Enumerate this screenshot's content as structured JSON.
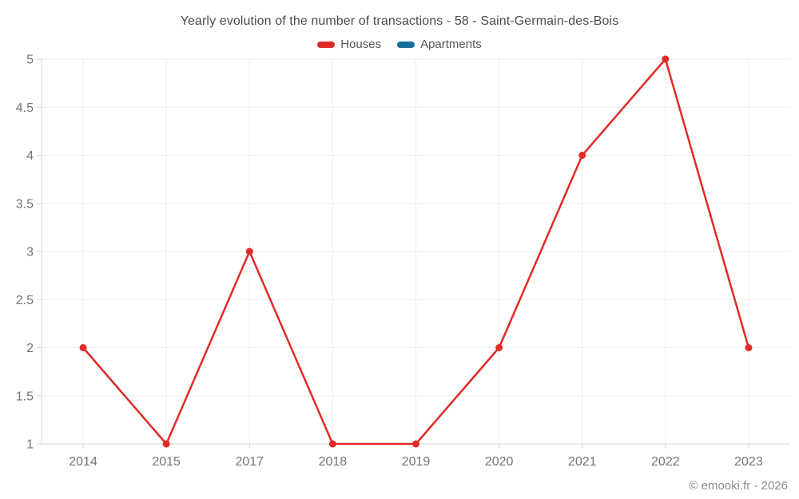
{
  "header": {
    "title": "Yearly evolution of the number of transactions - 58 - Saint-Germain-des-Bois"
  },
  "legend": {
    "items": [
      {
        "label": "Houses",
        "color": "#e02b27"
      },
      {
        "label": "Apartments",
        "color": "#176e9b"
      }
    ]
  },
  "footer": {
    "watermark": "© emooki.fr - 2026"
  },
  "colors": {
    "houses_line": "#e02b27",
    "apartments_line": "#176e9b",
    "gridline": "#ededed",
    "axis": "#d4d4d4",
    "tick_label": "#757575",
    "title_text": "#4b4b4b",
    "background": "#ffffff"
  },
  "chart_data": {
    "type": "line",
    "title": "Yearly evolution of the number of transactions - 58 - Saint-Germain-des-Bois",
    "categories": [
      "2014",
      "2015",
      "2017",
      "2018",
      "2019",
      "2020",
      "2021",
      "2022",
      "2023"
    ],
    "series": [
      {
        "name": "Houses",
        "color": "#e02b27",
        "values": [
          2,
          1,
          3,
          1,
          1,
          2,
          4,
          5,
          2
        ]
      },
      {
        "name": "Apartments",
        "color": "#176e9b",
        "values": []
      }
    ],
    "xlabel": "",
    "ylabel": "",
    "ylim": [
      1,
      5
    ],
    "yticks": [
      5,
      4.5,
      4,
      3.5,
      3,
      2.5,
      2,
      1.5,
      1
    ],
    "grid": true,
    "legend_position": "top",
    "marker": "circle"
  }
}
